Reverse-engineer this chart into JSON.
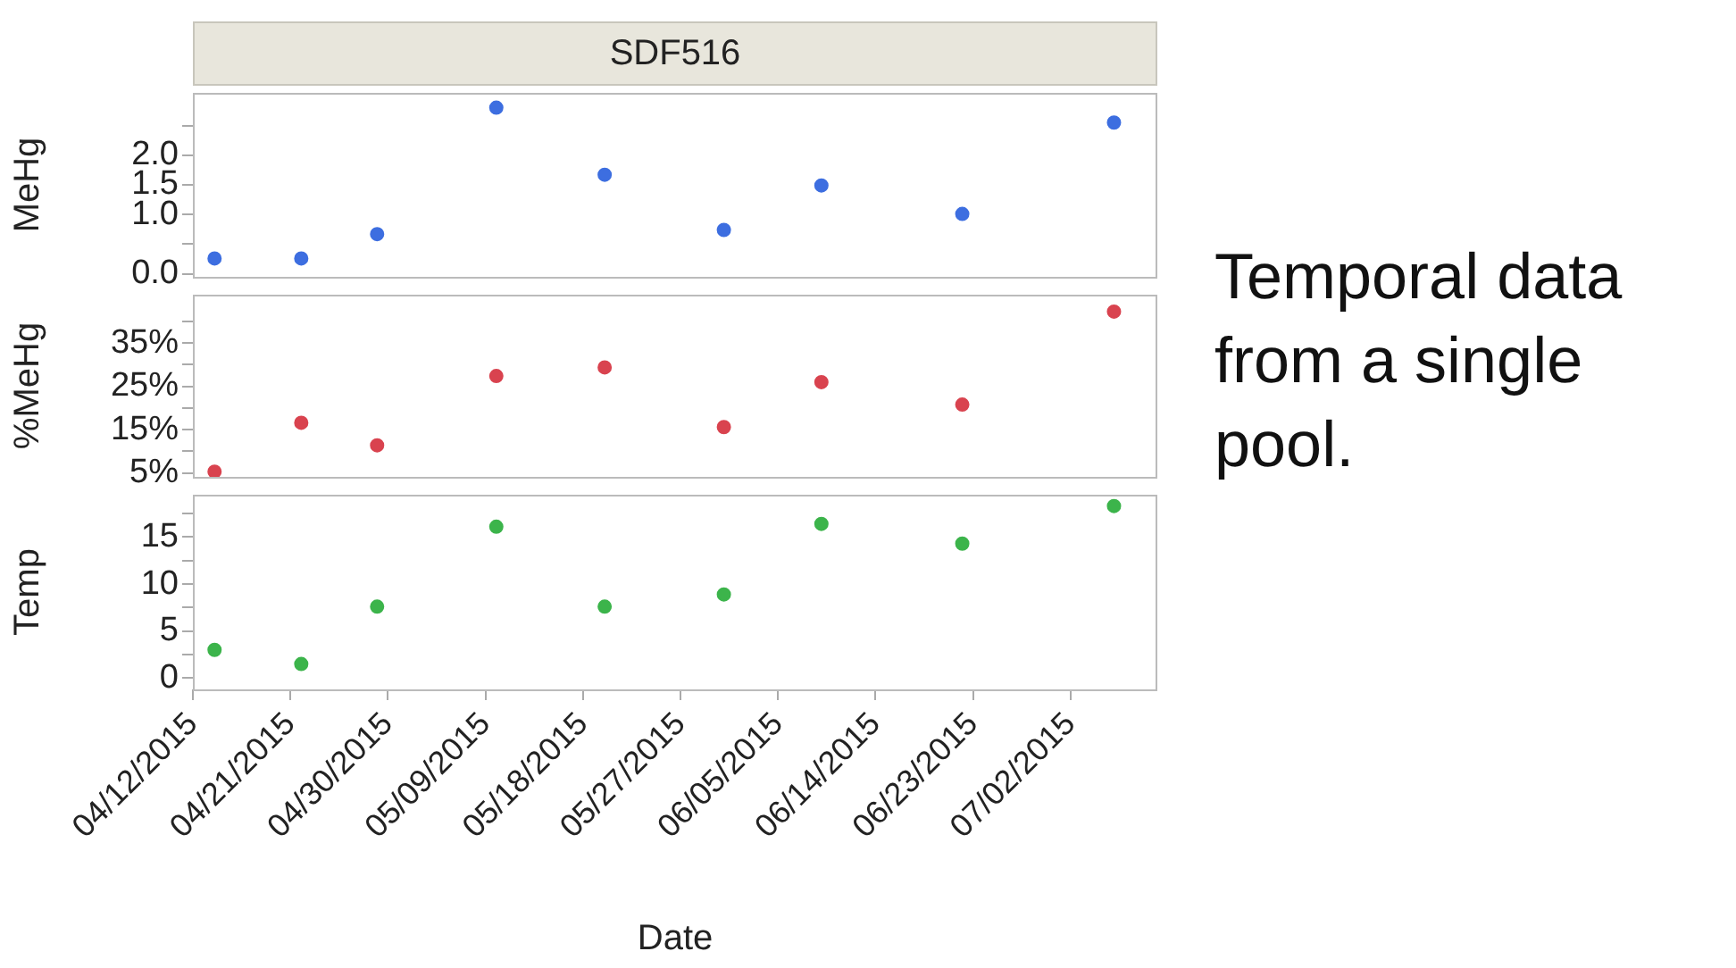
{
  "chart_data": [
    {
      "type": "scatter",
      "title": "SDF516",
      "ylabel": "MeHg",
      "annotations": [
        "Temporal data from a single pool."
      ],
      "marker": "circle",
      "color": "#3d6ee0",
      "tick_labels": "y",
      "x": [
        "2015-04-14",
        "2015-04-22",
        "2015-04-29",
        "2015-05-10",
        "2015-05-20",
        "2015-05-31",
        "2015-06-09",
        "2015-06-22",
        "2015-07-06"
      ],
      "values": [
        0.26,
        0.26,
        0.67,
        2.8,
        1.67,
        0.74,
        1.49,
        1.01,
        2.55
      ],
      "xlim": [
        "2015-04-12",
        "2015-07-10"
      ],
      "ylim": [
        -0.05,
        3.05
      ],
      "yticks": [
        {
          "value": 0,
          "label": "0.0"
        },
        {
          "value": 0.5,
          "label": null
        },
        {
          "value": 1,
          "label": "1.0"
        },
        {
          "value": 1.5,
          "label": "1.5"
        },
        {
          "value": 2,
          "label": "2.0"
        },
        {
          "value": 2.5,
          "label": null
        }
      ]
    },
    {
      "type": "scatter",
      "ylabel": "%MeHg",
      "marker": "circle",
      "color": "#d9434f",
      "tick_labels": "y",
      "x": [
        "2015-04-14",
        "2015-04-22",
        "2015-04-29",
        "2015-05-10",
        "2015-05-20",
        "2015-05-31",
        "2015-06-09",
        "2015-06-22",
        "2015-07-06"
      ],
      "values": [
        5.3,
        16.6,
        11.4,
        27.4,
        29.4,
        15.6,
        26.0,
        20.8,
        42.3
      ],
      "xlim": [
        "2015-04-12",
        "2015-07-10"
      ],
      "ylim": [
        4.1,
        46.2
      ],
      "yticks": [
        {
          "value": 5,
          "label": "5%"
        },
        {
          "value": 10,
          "label": null
        },
        {
          "value": 15,
          "label": "15%"
        },
        {
          "value": 20,
          "label": null
        },
        {
          "value": 25,
          "label": "25%"
        },
        {
          "value": 30,
          "label": null
        },
        {
          "value": 35,
          "label": "35%"
        },
        {
          "value": 40,
          "label": null
        }
      ]
    },
    {
      "type": "scatter",
      "ylabel": "Temp",
      "xlabel": "Date",
      "marker": "circle",
      "color": "#3cb44b",
      "x": [
        "2015-04-14",
        "2015-04-22",
        "2015-04-29",
        "2015-05-10",
        "2015-05-20",
        "2015-05-31",
        "2015-06-09",
        "2015-06-22",
        "2015-07-06"
      ],
      "values": [
        3.0,
        1.5,
        7.6,
        16.1,
        7.6,
        8.9,
        16.4,
        14.3,
        18.3
      ],
      "xlim": [
        "2015-04-12",
        "2015-07-10"
      ],
      "xticks": [
        {
          "value": "2015-04-12",
          "label": "04/12/2015"
        },
        {
          "value": "2015-04-21",
          "label": "04/21/2015"
        },
        {
          "value": "2015-04-30",
          "label": "04/30/2015"
        },
        {
          "value": "2015-05-09",
          "label": "05/09/2015"
        },
        {
          "value": "2015-05-18",
          "label": "05/18/2015"
        },
        {
          "value": "2015-05-27",
          "label": "05/27/2015"
        },
        {
          "value": "2015-06-05",
          "label": "06/05/2015"
        },
        {
          "value": "2015-06-14",
          "label": "06/14/2015"
        },
        {
          "value": "2015-06-23",
          "label": "06/23/2015"
        },
        {
          "value": "2015-07-02",
          "label": "07/02/2015"
        }
      ],
      "ylim": [
        -1.2,
        19.5
      ],
      "yticks": [
        0,
        {
          "value": 2.5,
          "label": null
        },
        5,
        {
          "value": 7.5,
          "label": null
        },
        10,
        {
          "value": 12.5,
          "label": null
        },
        15,
        {
          "value": 17.5,
          "label": null
        }
      ]
    }
  ]
}
